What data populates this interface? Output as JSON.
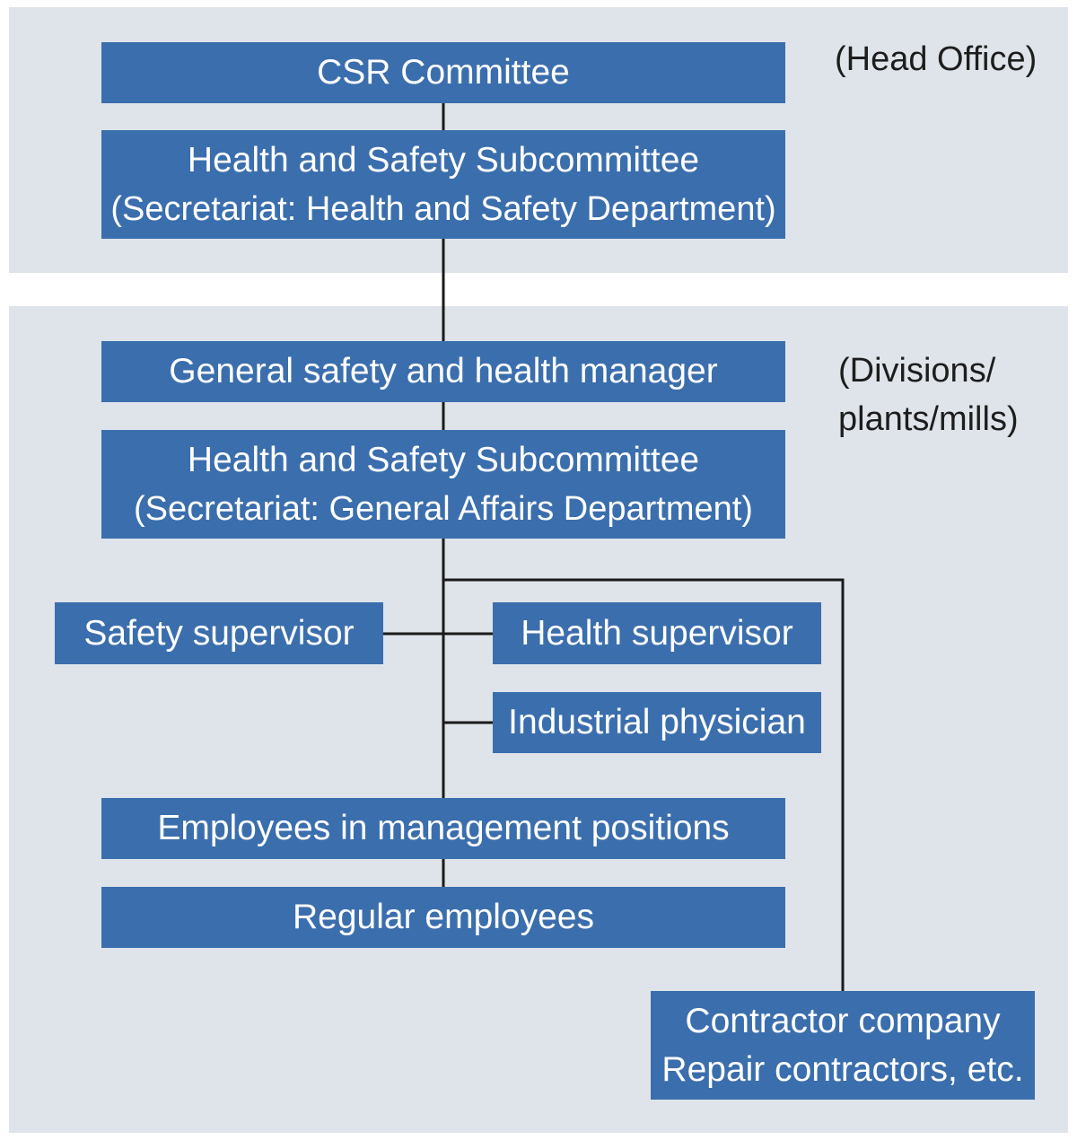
{
  "diagram": {
    "colors": {
      "panel_background": "#dee4ea",
      "box_fill": "#3b6ead",
      "box_text": "#ffffff",
      "connector": "#1a1a1a",
      "label_text": "#1d1d1d"
    },
    "sections": {
      "head_office": {
        "label": "(Head Office)"
      },
      "divisions": {
        "label_line1": "(Divisions/",
        "label_line2": "plants/mills)"
      }
    },
    "nodes": {
      "csr_committee": {
        "text": "CSR Committee"
      },
      "hs_subcommittee_head": {
        "line1": "Health and Safety Subcommittee",
        "line2": "(Secretariat: Health and Safety Department)"
      },
      "general_manager": {
        "text": "General safety and health manager"
      },
      "hs_subcommittee_division": {
        "line1": "Health and Safety Subcommittee",
        "line2": "(Secretariat: General Affairs Department)"
      },
      "safety_supervisor": {
        "text": "Safety supervisor"
      },
      "health_supervisor": {
        "text": "Health supervisor"
      },
      "industrial_physician": {
        "text": "Industrial physician"
      },
      "management_employees": {
        "text": "Employees in management positions"
      },
      "regular_employees": {
        "text": "Regular employees"
      },
      "contractor": {
        "line1": "Contractor company",
        "line2": "Repair contractors, etc."
      }
    }
  }
}
